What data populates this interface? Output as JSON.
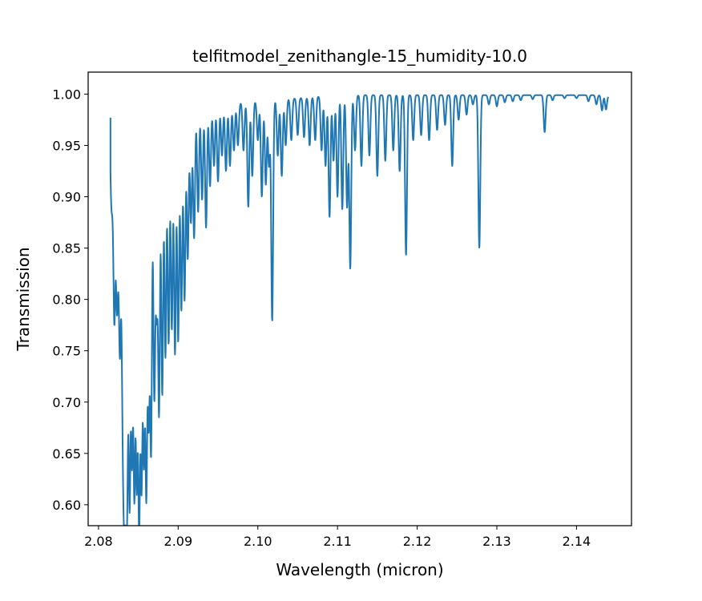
{
  "chart_data": {
    "type": "line",
    "title": "telfitmodel_zenithangle-15_humidity-10.0",
    "xlabel": "Wavelength (micron)",
    "ylabel": "Transmission",
    "xlim": [
      2.0787,
      2.1469
    ],
    "ylim": [
      0.5796,
      1.0214
    ],
    "xticks": [
      2.08,
      2.09,
      2.1,
      2.11,
      2.12,
      2.13,
      2.14
    ],
    "xtick_labels": [
      "2.08",
      "2.09",
      "2.10",
      "2.11",
      "2.12",
      "2.13",
      "2.14"
    ],
    "yticks": [
      0.6,
      0.65,
      0.7,
      0.75,
      0.8,
      0.85,
      0.9,
      0.95,
      1.0
    ],
    "ytick_labels": [
      "0.60",
      "0.65",
      "0.70",
      "0.75",
      "0.80",
      "0.85",
      "0.90",
      "0.95",
      "1.00"
    ],
    "grid": false,
    "x_range_data": [
      2.0815,
      2.144
    ],
    "series": [
      {
        "color": "#1f77b4",
        "absorption_lines": [
          [
            2.0816,
            0.905
          ],
          [
            2.0818,
            0.93
          ],
          [
            2.082,
            0.795
          ],
          [
            2.0823,
            0.815
          ],
          [
            2.0825,
            0.9
          ],
          [
            2.0827,
            0.773
          ],
          [
            2.083,
            0.763
          ],
          [
            2.0832,
            0.695
          ],
          [
            2.0834,
            0.73
          ],
          [
            2.0836,
            0.667
          ],
          [
            2.0839,
            0.62
          ],
          [
            2.0842,
            0.665
          ],
          [
            2.0845,
            0.63
          ],
          [
            2.0848,
            0.642
          ],
          [
            2.0851,
            0.598
          ],
          [
            2.0854,
            0.64
          ],
          [
            2.0857,
            0.665
          ],
          [
            2.086,
            0.628
          ],
          [
            2.0863,
            0.7
          ],
          [
            2.0866,
            0.66
          ],
          [
            2.087,
            0.71
          ],
          [
            2.0873,
            0.8
          ],
          [
            2.0876,
            0.695
          ],
          [
            2.088,
            0.708
          ],
          [
            2.0884,
            0.745
          ],
          [
            2.0888,
            0.758
          ],
          [
            2.0892,
            0.772
          ],
          [
            2.0896,
            0.748
          ],
          [
            2.09,
            0.76
          ],
          [
            2.0904,
            0.79
          ],
          [
            2.0908,
            0.8
          ],
          [
            2.0912,
            0.84
          ],
          [
            2.0916,
            0.875
          ],
          [
            2.092,
            0.86
          ],
          [
            2.0925,
            0.885
          ],
          [
            2.093,
            0.897
          ],
          [
            2.0935,
            0.87
          ],
          [
            2.094,
            0.91
          ],
          [
            2.0945,
            0.93
          ],
          [
            2.095,
            0.915
          ],
          [
            2.0955,
            0.94
          ],
          [
            2.096,
            0.925
          ],
          [
            2.0965,
            0.93
          ],
          [
            2.097,
            0.945
          ],
          [
            2.0975,
            0.95
          ],
          [
            2.0982,
            0.945
          ],
          [
            2.0988,
            0.89
          ],
          [
            2.0993,
            0.92
          ],
          [
            2.1,
            0.955
          ],
          [
            2.1005,
            0.9
          ],
          [
            2.101,
            0.912
          ],
          [
            2.1014,
            0.93
          ],
          [
            2.1018,
            0.779
          ],
          [
            2.1025,
            0.94
          ],
          [
            2.103,
            0.92
          ],
          [
            2.1035,
            0.95
          ],
          [
            2.1042,
            0.955
          ],
          [
            2.105,
            0.96
          ],
          [
            2.1058,
            0.958
          ],
          [
            2.1065,
            0.95
          ],
          [
            2.1072,
            0.955
          ],
          [
            2.108,
            0.945
          ],
          [
            2.1085,
            0.93
          ],
          [
            2.109,
            0.88
          ],
          [
            2.1095,
            0.935
          ],
          [
            2.11,
            0.9
          ],
          [
            2.1106,
            0.888
          ],
          [
            2.1112,
            0.89
          ],
          [
            2.1116,
            0.83
          ],
          [
            2.1122,
            0.945
          ],
          [
            2.113,
            0.93
          ],
          [
            2.114,
            0.94
          ],
          [
            2.115,
            0.92
          ],
          [
            2.116,
            0.935
          ],
          [
            2.117,
            0.945
          ],
          [
            2.1178,
            0.925
          ],
          [
            2.1186,
            0.843
          ],
          [
            2.1195,
            0.955
          ],
          [
            2.1205,
            0.96
          ],
          [
            2.1215,
            0.955
          ],
          [
            2.1225,
            0.965
          ],
          [
            2.1235,
            0.97
          ],
          [
            2.1244,
            0.93
          ],
          [
            2.1252,
            0.975
          ],
          [
            2.1262,
            0.98
          ],
          [
            2.127,
            0.99
          ],
          [
            2.1278,
            0.85
          ],
          [
            2.129,
            0.99
          ],
          [
            2.13,
            0.988
          ],
          [
            2.131,
            0.992
          ],
          [
            2.132,
            0.993
          ],
          [
            2.133,
            0.994
          ],
          [
            2.1345,
            0.995
          ],
          [
            2.136,
            0.963
          ],
          [
            2.137,
            0.994
          ],
          [
            2.1385,
            0.996
          ],
          [
            2.14,
            0.996
          ],
          [
            2.1415,
            0.993
          ],
          [
            2.1425,
            0.99
          ],
          [
            2.1432,
            0.984
          ],
          [
            2.1437,
            0.985
          ],
          [
            2.144,
            0.998
          ]
        ]
      }
    ]
  }
}
